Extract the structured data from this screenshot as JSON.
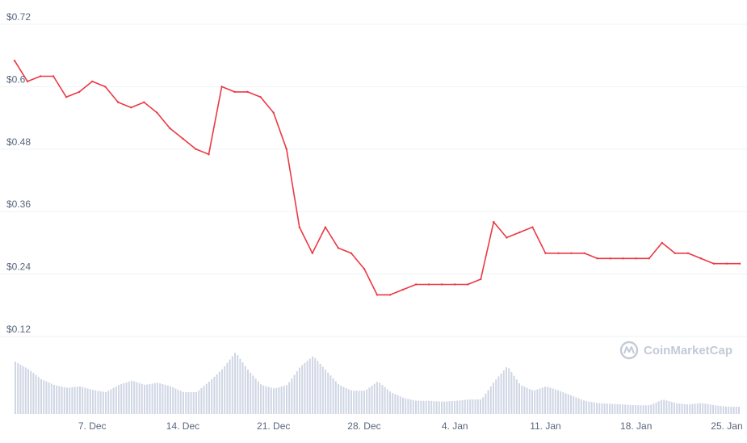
{
  "brand": {
    "watermark": "CoinMarketCap",
    "line_color": "#ea3943",
    "volume_color": "#cfd6e4",
    "watermark_color": "#c3cbd7",
    "label_color": "#58667e",
    "grid_color": "#eff2f5"
  },
  "chart_data": {
    "type": "line",
    "title": "",
    "xlabel": "",
    "ylabel": "",
    "y_ticks": [
      "$0.72",
      "$0.6",
      "$0.48",
      "$0.36",
      "$0.24",
      "$0.12"
    ],
    "ylim": [
      0.12,
      0.72
    ],
    "x_ticks": [
      "7. Dec",
      "14. Dec",
      "21. Dec",
      "28. Dec",
      "4. Jan",
      "11. Jan",
      "18. Jan",
      "25. Jan"
    ],
    "x_range": [
      "2020-12-01",
      "2021-01-26"
    ],
    "grid": true,
    "legend": "none",
    "series": [
      {
        "kind": "price",
        "x": [
          "2020-12-01",
          "2020-12-02",
          "2020-12-03",
          "2020-12-04",
          "2020-12-05",
          "2020-12-06",
          "2020-12-07",
          "2020-12-08",
          "2020-12-09",
          "2020-12-10",
          "2020-12-11",
          "2020-12-12",
          "2020-12-13",
          "2020-12-14",
          "2020-12-15",
          "2020-12-16",
          "2020-12-17",
          "2020-12-18",
          "2020-12-19",
          "2020-12-20",
          "2020-12-21",
          "2020-12-22",
          "2020-12-23",
          "2020-12-24",
          "2020-12-25",
          "2020-12-26",
          "2020-12-27",
          "2020-12-28",
          "2020-12-29",
          "2020-12-30",
          "2020-12-31",
          "2021-01-01",
          "2021-01-02",
          "2021-01-03",
          "2021-01-04",
          "2021-01-05",
          "2021-01-06",
          "2021-01-07",
          "2021-01-08",
          "2021-01-09",
          "2021-01-10",
          "2021-01-11",
          "2021-01-12",
          "2021-01-13",
          "2021-01-14",
          "2021-01-15",
          "2021-01-16",
          "2021-01-17",
          "2021-01-18",
          "2021-01-19",
          "2021-01-20",
          "2021-01-21",
          "2021-01-22",
          "2021-01-23",
          "2021-01-24",
          "2021-01-25",
          "2021-01-26"
        ],
        "values": [
          0.65,
          0.61,
          0.62,
          0.62,
          0.58,
          0.59,
          0.61,
          0.6,
          0.57,
          0.56,
          0.57,
          0.55,
          0.52,
          0.5,
          0.48,
          0.47,
          0.6,
          0.59,
          0.59,
          0.58,
          0.55,
          0.48,
          0.33,
          0.28,
          0.33,
          0.29,
          0.28,
          0.25,
          0.2,
          0.2,
          0.21,
          0.22,
          0.22,
          0.22,
          0.22,
          0.22,
          0.23,
          0.34,
          0.31,
          0.32,
          0.33,
          0.28,
          0.28,
          0.28,
          0.28,
          0.27,
          0.27,
          0.27,
          0.27,
          0.27,
          0.3,
          0.28,
          0.28,
          0.27,
          0.26,
          0.26,
          0.26
        ]
      },
      {
        "kind": "volume",
        "x": [
          "2020-12-01",
          "2020-12-02",
          "2020-12-03",
          "2020-12-04",
          "2020-12-05",
          "2020-12-06",
          "2020-12-07",
          "2020-12-08",
          "2020-12-09",
          "2020-12-10",
          "2020-12-11",
          "2020-12-12",
          "2020-12-13",
          "2020-12-14",
          "2020-12-15",
          "2020-12-16",
          "2020-12-17",
          "2020-12-18",
          "2020-12-19",
          "2020-12-20",
          "2020-12-21",
          "2020-12-22",
          "2020-12-23",
          "2020-12-24",
          "2020-12-25",
          "2020-12-26",
          "2020-12-27",
          "2020-12-28",
          "2020-12-29",
          "2020-12-30",
          "2020-12-31",
          "2021-01-01",
          "2021-01-02",
          "2021-01-03",
          "2021-01-04",
          "2021-01-05",
          "2021-01-06",
          "2021-01-07",
          "2021-01-08",
          "2021-01-09",
          "2021-01-10",
          "2021-01-11",
          "2021-01-12",
          "2021-01-13",
          "2021-01-14",
          "2021-01-15",
          "2021-01-16",
          "2021-01-17",
          "2021-01-18",
          "2021-01-19",
          "2021-01-20",
          "2021-01-21",
          "2021-01-22",
          "2021-01-23",
          "2021-01-24",
          "2021-01-25",
          "2021-01-26"
        ],
        "values": [
          0.72,
          0.62,
          0.48,
          0.4,
          0.36,
          0.38,
          0.33,
          0.3,
          0.4,
          0.46,
          0.4,
          0.43,
          0.38,
          0.3,
          0.3,
          0.45,
          0.62,
          0.85,
          0.6,
          0.4,
          0.35,
          0.4,
          0.65,
          0.8,
          0.6,
          0.4,
          0.32,
          0.32,
          0.45,
          0.3,
          0.22,
          0.18,
          0.18,
          0.17,
          0.18,
          0.2,
          0.2,
          0.45,
          0.66,
          0.4,
          0.32,
          0.38,
          0.32,
          0.25,
          0.18,
          0.15,
          0.14,
          0.13,
          0.12,
          0.12,
          0.2,
          0.15,
          0.13,
          0.15,
          0.12,
          0.1,
          0.1
        ]
      }
    ]
  }
}
